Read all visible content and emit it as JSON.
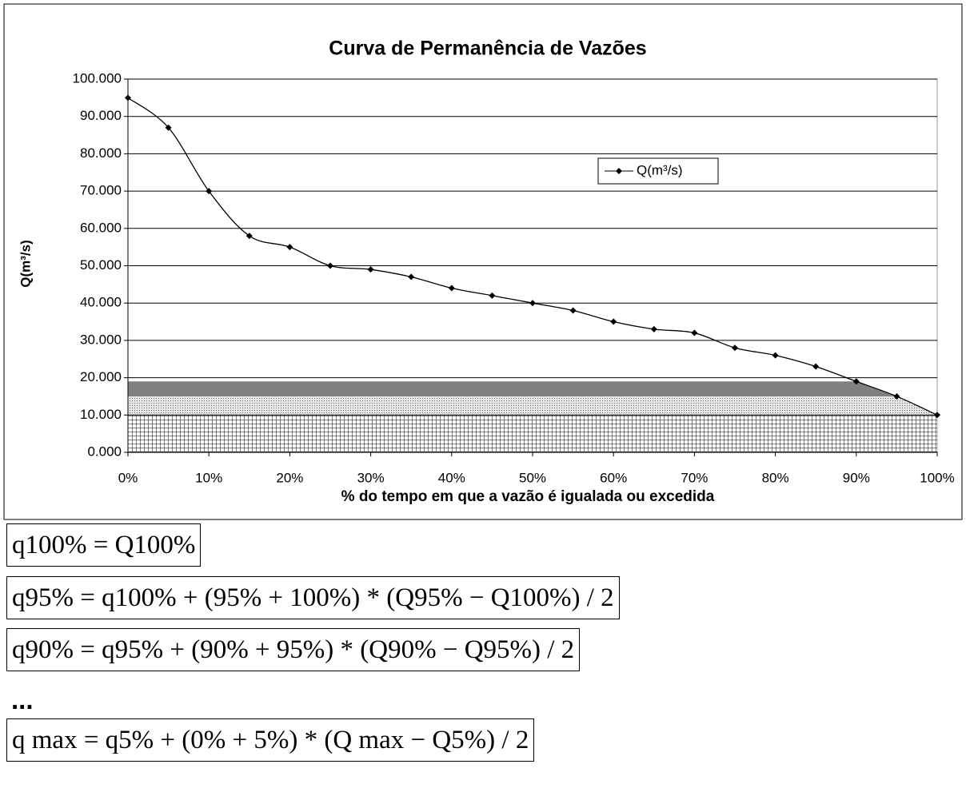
{
  "chart_data": {
    "type": "line",
    "title": "Curva de Permanência de Vazões",
    "x_label": "% do tempo em que a vazão é igualada ou excedida",
    "y_label": "Q(m³/s)",
    "x": [
      0,
      5,
      10,
      15,
      20,
      25,
      30,
      35,
      40,
      45,
      50,
      55,
      60,
      65,
      70,
      75,
      80,
      85,
      90,
      95,
      100
    ],
    "series": [
      {
        "name": "Q(m³/s)",
        "color": "#000000",
        "values": [
          95,
          87,
          70,
          58,
          55,
          50,
          49,
          47,
          44,
          42,
          40,
          38,
          35,
          33,
          32,
          28,
          26,
          23,
          19,
          15,
          10
        ]
      }
    ],
    "xlim": [
      0,
      100
    ],
    "xticks": [
      {
        "value": 0,
        "label": "0%"
      },
      {
        "value": 10,
        "label": "10%"
      },
      {
        "value": 20,
        "label": "20%"
      },
      {
        "value": 30,
        "label": "30%"
      },
      {
        "value": 40,
        "label": "40%"
      },
      {
        "value": 50,
        "label": "50%"
      },
      {
        "value": 60,
        "label": "60%"
      },
      {
        "value": 70,
        "label": "70%"
      },
      {
        "value": 80,
        "label": "80%"
      },
      {
        "value": 90,
        "label": "90%"
      },
      {
        "value": 100,
        "label": "100%"
      }
    ],
    "ylim": [
      0,
      100
    ],
    "yticks": [
      {
        "value": 0,
        "label": "0.000"
      },
      {
        "value": 10,
        "label": "10.000"
      },
      {
        "value": 20,
        "label": "20.000"
      },
      {
        "value": 30,
        "label": "30.000"
      },
      {
        "value": 40,
        "label": "40.000"
      },
      {
        "value": 50,
        "label": "50.000"
      },
      {
        "value": 60,
        "label": "60.000"
      },
      {
        "value": 70,
        "label": "70.000"
      },
      {
        "value": 80,
        "label": "80.000"
      },
      {
        "value": 90,
        "label": "90.000"
      },
      {
        "value": 100,
        "label": "100.000"
      }
    ],
    "grid": true,
    "legend": "upper right"
  },
  "formulas": [
    "q100% = Q100%",
    "q95% = q100% + (95% + 100%) * (Q95% − Q100%) / 2",
    "q90% = q95% + (90% + 95%) * (Q90% − Q95%) / 2",
    "...",
    "q max = q5% + (0% + 5%) * (Q max − Q5%) / 2"
  ]
}
